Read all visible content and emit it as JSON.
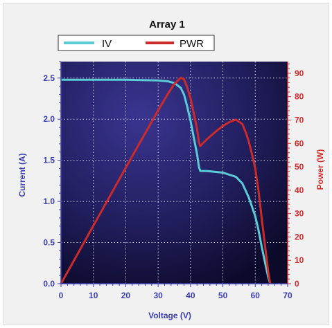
{
  "chart_data": {
    "type": "line",
    "title": "Array 1",
    "xlabel": "Voltage (V)",
    "ylabel": "Current (A)",
    "y2label": "Power (W)",
    "xlim": [
      0,
      70
    ],
    "ylim": [
      0,
      2.7
    ],
    "y2lim": [
      0,
      95
    ],
    "xticks": [
      "0",
      "10",
      "20",
      "30",
      "40",
      "50",
      "60",
      "70"
    ],
    "yticks": [
      "0.0",
      "0.5",
      "1.0",
      "1.5",
      "2.0",
      "2.5"
    ],
    "y2ticks": [
      "0",
      "10",
      "20",
      "30",
      "40",
      "50",
      "60",
      "70",
      "80",
      "90"
    ],
    "grid": true,
    "legend_position": "top",
    "colors": {
      "iv": "#5ccbd8",
      "pwr": "#cc2b2b",
      "plot_bg": "#1e1b4f"
    },
    "series": [
      {
        "name": "IV",
        "axis": "left",
        "x": [
          0,
          10,
          20,
          30,
          33,
          35,
          37,
          38,
          39,
          40,
          41,
          42,
          42.6,
          43,
          45,
          50,
          54,
          56,
          58,
          60,
          61,
          62,
          63,
          64,
          64.6
        ],
        "y": [
          2.48,
          2.48,
          2.48,
          2.47,
          2.46,
          2.44,
          2.38,
          2.3,
          2.15,
          1.98,
          1.78,
          1.58,
          1.42,
          1.37,
          1.37,
          1.35,
          1.3,
          1.22,
          1.05,
          0.82,
          0.65,
          0.45,
          0.26,
          0.08,
          0.0
        ]
      },
      {
        "name": "PWR",
        "axis": "right",
        "x": [
          0,
          10,
          20,
          30,
          33,
          35,
          37,
          38,
          39,
          40,
          41,
          42,
          42.6,
          43,
          45,
          48,
          50,
          52,
          54,
          56,
          57,
          58,
          59,
          60,
          61,
          62,
          63,
          64,
          64.6
        ],
        "y": [
          0,
          24.8,
          49.6,
          74.1,
          81.2,
          85.4,
          88.1,
          87.4,
          83.9,
          79.2,
          73.0,
          66.4,
          60.5,
          58.9,
          61.7,
          65.3,
          67.5,
          69.1,
          70.2,
          68.3,
          65.0,
          60.9,
          55.3,
          49.2,
          39.7,
          27.9,
          16.4,
          5.1,
          0
        ]
      }
    ]
  }
}
